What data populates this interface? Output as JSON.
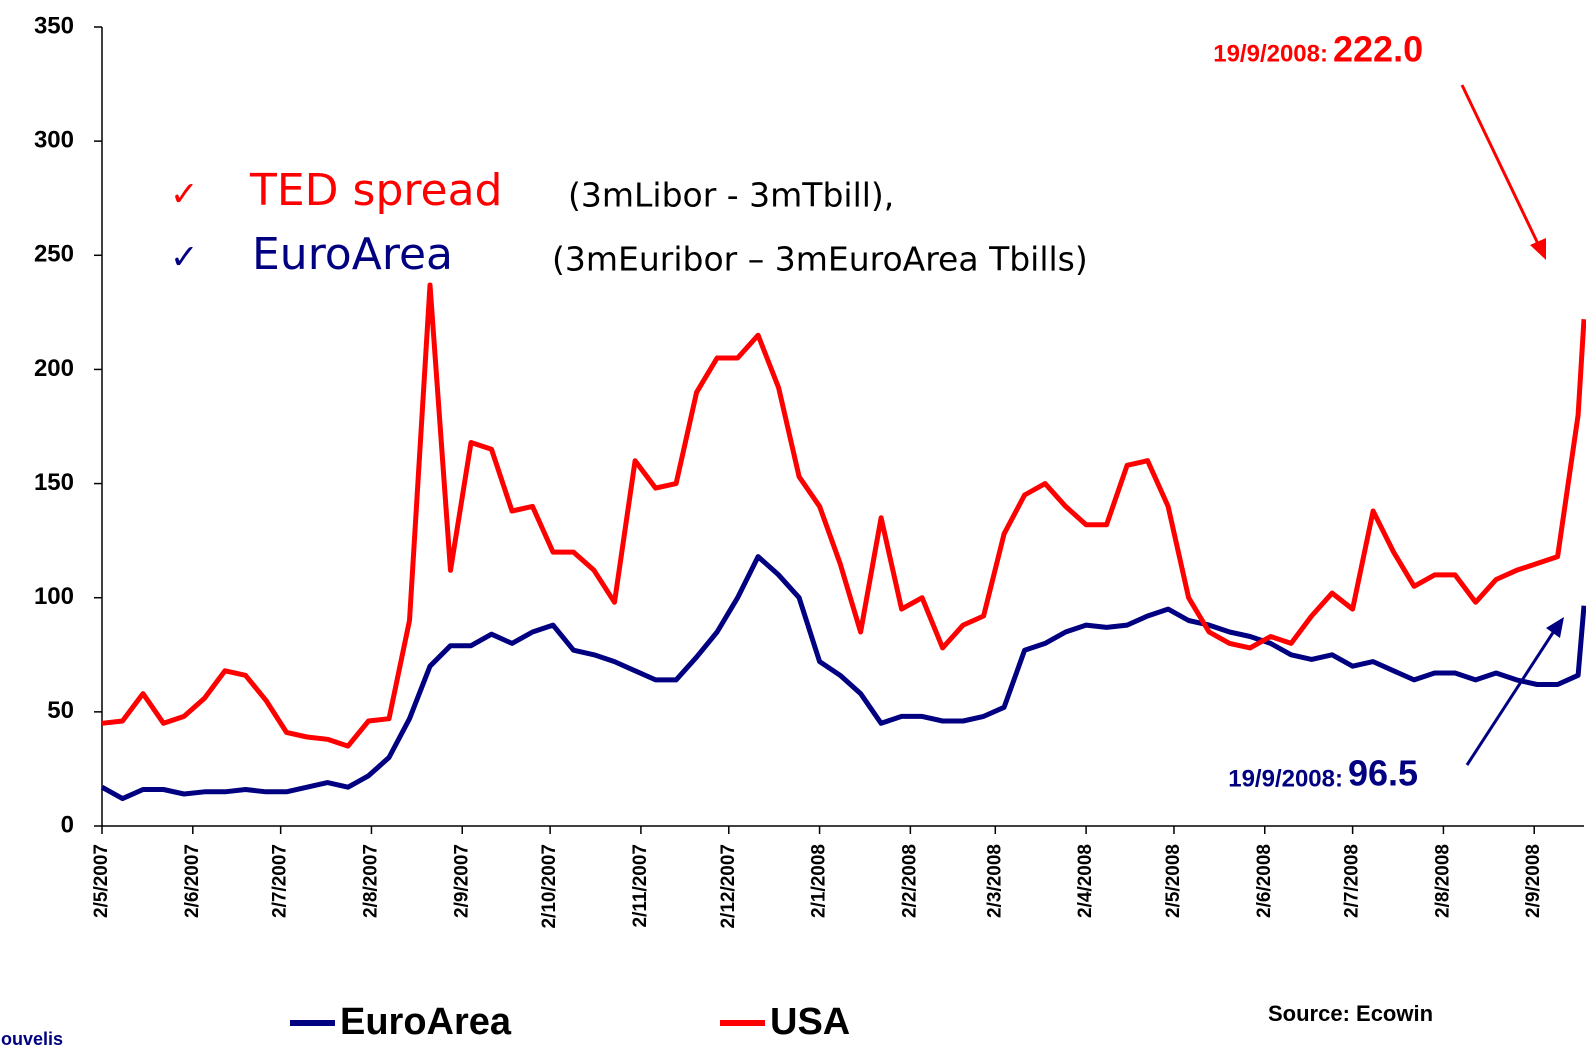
{
  "chart_data": {
    "type": "line",
    "x": [
      "2/5/2007",
      "9/5/2007",
      "16/5/2007",
      "23/5/2007",
      "30/5/2007",
      "6/6/2007",
      "13/6/2007",
      "20/6/2007",
      "27/6/2007",
      "4/7/2007",
      "11/7/2007",
      "18/7/2007",
      "25/7/2007",
      "1/8/2007",
      "8/8/2007",
      "15/8/2007",
      "22/8/2007",
      "29/8/2007",
      "5/9/2007",
      "12/9/2007",
      "19/9/2007",
      "26/9/2007",
      "3/10/2007",
      "10/10/2007",
      "17/10/2007",
      "24/10/2007",
      "31/10/2007",
      "7/11/2007",
      "14/11/2007",
      "21/11/2007",
      "28/11/2007",
      "5/12/2007",
      "12/12/2007",
      "19/12/2007",
      "26/12/2007",
      "2/1/2008",
      "9/1/2008",
      "16/1/2008",
      "23/1/2008",
      "30/1/2008",
      "6/2/2008",
      "13/2/2008",
      "20/2/2008",
      "27/2/2008",
      "5/3/2008",
      "12/3/2008",
      "19/3/2008",
      "26/3/2008",
      "2/4/2008",
      "9/4/2008",
      "16/4/2008",
      "23/4/2008",
      "30/4/2008",
      "7/5/2008",
      "14/5/2008",
      "21/5/2008",
      "28/5/2008",
      "4/6/2008",
      "11/6/2008",
      "18/6/2008",
      "25/6/2008",
      "2/7/2008",
      "9/7/2008",
      "16/7/2008",
      "23/7/2008",
      "30/7/2008",
      "6/8/2008",
      "13/8/2008",
      "20/8/2008",
      "27/8/2008",
      "3/9/2008",
      "10/9/2008",
      "17/9/2008",
      "19/9/2008"
    ],
    "series": [
      {
        "name": "EuroArea",
        "color": "#000080",
        "values": [
          17,
          12,
          16,
          16,
          14,
          15,
          15,
          16,
          15,
          15,
          17,
          19,
          17,
          22,
          30,
          47,
          70,
          79,
          79,
          84,
          80,
          85,
          88,
          77,
          75,
          72,
          68,
          64,
          64,
          74,
          85,
          100,
          118,
          110,
          100,
          72,
          66,
          58,
          45,
          48,
          48,
          46,
          46,
          48,
          52,
          77,
          80,
          85,
          88,
          87,
          88,
          92,
          95,
          90,
          88,
          85,
          83,
          80,
          75,
          73,
          75,
          70,
          72,
          68,
          64,
          67,
          67,
          64,
          67,
          64,
          62,
          62,
          66,
          96.5
        ]
      },
      {
        "name": "USA",
        "color": "#ff0000",
        "values": [
          45,
          46,
          58,
          45,
          48,
          56,
          68,
          66,
          55,
          41,
          39,
          38,
          35,
          46,
          47,
          90,
          237,
          112,
          168,
          165,
          138,
          140,
          120,
          120,
          112,
          98,
          160,
          148,
          150,
          190,
          205,
          205,
          215,
          192,
          153,
          140,
          115,
          85,
          135,
          95,
          100,
          78,
          88,
          92,
          128,
          145,
          150,
          140,
          132,
          132,
          158,
          160,
          140,
          100,
          85,
          80,
          78,
          83,
          80,
          92,
          102,
          95,
          138,
          120,
          105,
          110,
          110,
          98,
          108,
          112,
          115,
          118,
          180,
          222
        ]
      }
    ],
    "xlim": [
      "2/5/2007",
      "19/9/2008"
    ],
    "xticks": [
      "2/5/2007",
      "2/6/2007",
      "2/7/2007",
      "2/8/2007",
      "2/9/2007",
      "2/10/2007",
      "2/11/2007",
      "2/12/2007",
      "2/1/2008",
      "2/2/2008",
      "2/3/2008",
      "2/4/2008",
      "2/5/2008",
      "2/6/2008",
      "2/7/2008",
      "2/8/2008",
      "2/9/2008"
    ],
    "ylim": [
      0,
      350
    ],
    "yticks": [
      0,
      50,
      100,
      150,
      200,
      250,
      300,
      350
    ],
    "grid": false,
    "checkmark": "✓",
    "note": [
      {
        "name": "TED spread",
        "detail": "(3mLibor - 3mTbill),"
      },
      {
        "name": "EuroArea",
        "detail": "(3mEuribor – 3mEuroArea Tbills)"
      }
    ],
    "annotations": [
      {
        "date": "19/9/2008:",
        "value_label": "222.0"
      },
      {
        "date": "19/9/2008:",
        "value_label": "96.5"
      }
    ],
    "source": "Source: Ecowin",
    "author": "louvelis"
  }
}
